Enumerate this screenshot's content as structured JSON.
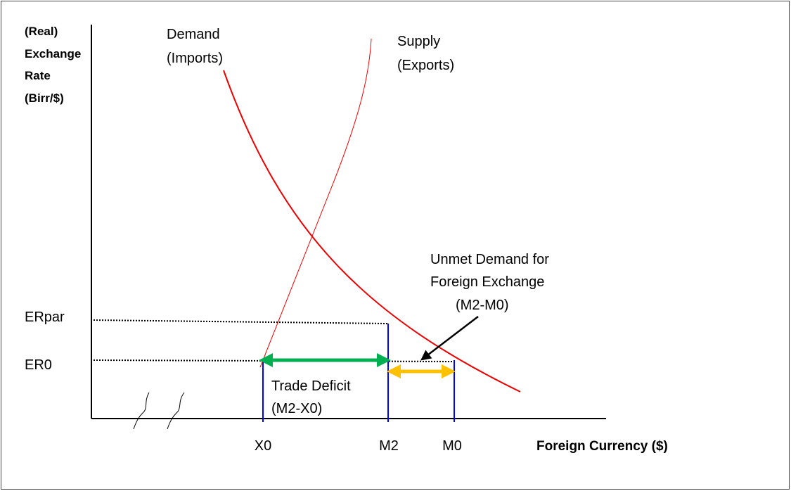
{
  "axes": {
    "y_label": [
      "(Real)",
      "Exchange",
      "Rate",
      "(Birr/$)"
    ],
    "x_label": "Foreign Currency ($)"
  },
  "curves": {
    "demand": [
      "Demand",
      "(Imports)"
    ],
    "supply": [
      "Supply",
      "(Exports)"
    ]
  },
  "levels": {
    "er_par": "ERpar",
    "er0": "ER0"
  },
  "quantities": {
    "x0": "X0",
    "m2": "M2",
    "m0": "M0"
  },
  "annotations": {
    "trade_deficit": [
      "Trade Deficit",
      "(M2-X0)"
    ],
    "unmet_demand": [
      "Unmet Demand for",
      "Foreign Exchange",
      "(M2-M0)"
    ]
  }
}
